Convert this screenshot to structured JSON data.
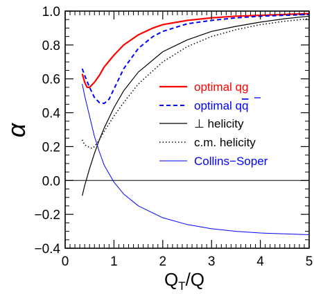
{
  "chart_data": {
    "type": "line",
    "xlabel": "Q",
    "xlabel_sub": "T",
    "xlabel_tail": "/Q",
    "ylabel": "α",
    "xlim": [
      0,
      5
    ],
    "ylim": [
      -0.4,
      1.0
    ],
    "x_ticks": [
      0,
      1,
      2,
      3,
      4,
      5
    ],
    "x_tick_labels": [
      "0",
      "1",
      "2",
      "3",
      "4",
      "5"
    ],
    "y_ticks": [
      -0.4,
      -0.2,
      0.0,
      0.2,
      0.4,
      0.6,
      0.8,
      1.0
    ],
    "y_tick_labels": [
      "−0.4",
      "−0.2",
      "0.0",
      "0.2",
      "0.4",
      "0.6",
      "0.8",
      "1.0"
    ],
    "reference_line_y": 0.0,
    "grid": false,
    "legend_position": "right",
    "series": [
      {
        "name": "optimal qg",
        "color": "#ff0000",
        "style": "solid",
        "width": 2.2,
        "points": [
          [
            0.35,
            0.63
          ],
          [
            0.4,
            0.58
          ],
          [
            0.45,
            0.55
          ],
          [
            0.5,
            0.55
          ],
          [
            0.6,
            0.58
          ],
          [
            0.7,
            0.62
          ],
          [
            0.8,
            0.67
          ],
          [
            1.0,
            0.74
          ],
          [
            1.2,
            0.8
          ],
          [
            1.5,
            0.86
          ],
          [
            1.8,
            0.9
          ],
          [
            2.0,
            0.92
          ],
          [
            2.5,
            0.945
          ],
          [
            3.0,
            0.96
          ],
          [
            3.5,
            0.97
          ],
          [
            4.0,
            0.975
          ],
          [
            4.5,
            0.98
          ],
          [
            5.0,
            0.985
          ]
        ]
      },
      {
        "name": "optimal q",
        "name_bar": "q",
        "color": "#0000ff",
        "style": "dashed",
        "width": 2.0,
        "points": [
          [
            0.35,
            0.66
          ],
          [
            0.4,
            0.62
          ],
          [
            0.5,
            0.55
          ],
          [
            0.6,
            0.49
          ],
          [
            0.7,
            0.46
          ],
          [
            0.8,
            0.455
          ],
          [
            0.9,
            0.48
          ],
          [
            1.0,
            0.54
          ],
          [
            1.2,
            0.66
          ],
          [
            1.5,
            0.78
          ],
          [
            1.8,
            0.85
          ],
          [
            2.0,
            0.88
          ],
          [
            2.5,
            0.925
          ],
          [
            3.0,
            0.945
          ],
          [
            3.5,
            0.96
          ],
          [
            4.0,
            0.97
          ],
          [
            4.5,
            0.975
          ],
          [
            5.0,
            0.98
          ]
        ]
      },
      {
        "name": "⊥ helicity",
        "color": "#000000",
        "style": "solid",
        "width": 1.2,
        "points": [
          [
            0.35,
            -0.09
          ],
          [
            0.4,
            -0.03
          ],
          [
            0.5,
            0.07
          ],
          [
            0.6,
            0.16
          ],
          [
            0.7,
            0.24
          ],
          [
            0.8,
            0.31
          ],
          [
            1.0,
            0.43
          ],
          [
            1.2,
            0.53
          ],
          [
            1.5,
            0.64
          ],
          [
            2.0,
            0.76
          ],
          [
            2.5,
            0.83
          ],
          [
            3.0,
            0.88
          ],
          [
            3.5,
            0.91
          ],
          [
            4.0,
            0.935
          ],
          [
            4.5,
            0.955
          ],
          [
            5.0,
            0.97
          ]
        ]
      },
      {
        "name": "c.m. helicity",
        "color": "#000000",
        "style": "dotted",
        "width": 1.5,
        "points": [
          [
            0.35,
            0.24
          ],
          [
            0.4,
            0.21
          ],
          [
            0.5,
            0.195
          ],
          [
            0.55,
            0.19
          ],
          [
            0.6,
            0.2
          ],
          [
            0.7,
            0.24
          ],
          [
            0.8,
            0.29
          ],
          [
            1.0,
            0.38
          ],
          [
            1.2,
            0.46
          ],
          [
            1.5,
            0.57
          ],
          [
            2.0,
            0.7
          ],
          [
            2.5,
            0.79
          ],
          [
            3.0,
            0.85
          ],
          [
            3.5,
            0.89
          ],
          [
            4.0,
            0.92
          ],
          [
            4.5,
            0.94
          ],
          [
            5.0,
            0.955
          ]
        ]
      },
      {
        "name": "Collins−Soper",
        "color": "#0000ff",
        "style": "solid",
        "width": 1.0,
        "points": [
          [
            0.35,
            0.57
          ],
          [
            0.4,
            0.5
          ],
          [
            0.5,
            0.38
          ],
          [
            0.6,
            0.26
          ],
          [
            0.7,
            0.17
          ],
          [
            0.8,
            0.09
          ],
          [
            1.0,
            -0.01
          ],
          [
            1.2,
            -0.08
          ],
          [
            1.5,
            -0.15
          ],
          [
            2.0,
            -0.22
          ],
          [
            2.5,
            -0.26
          ],
          [
            3.0,
            -0.285
          ],
          [
            3.5,
            -0.3
          ],
          [
            4.0,
            -0.31
          ],
          [
            4.5,
            -0.315
          ],
          [
            5.0,
            -0.32
          ]
        ]
      }
    ]
  }
}
